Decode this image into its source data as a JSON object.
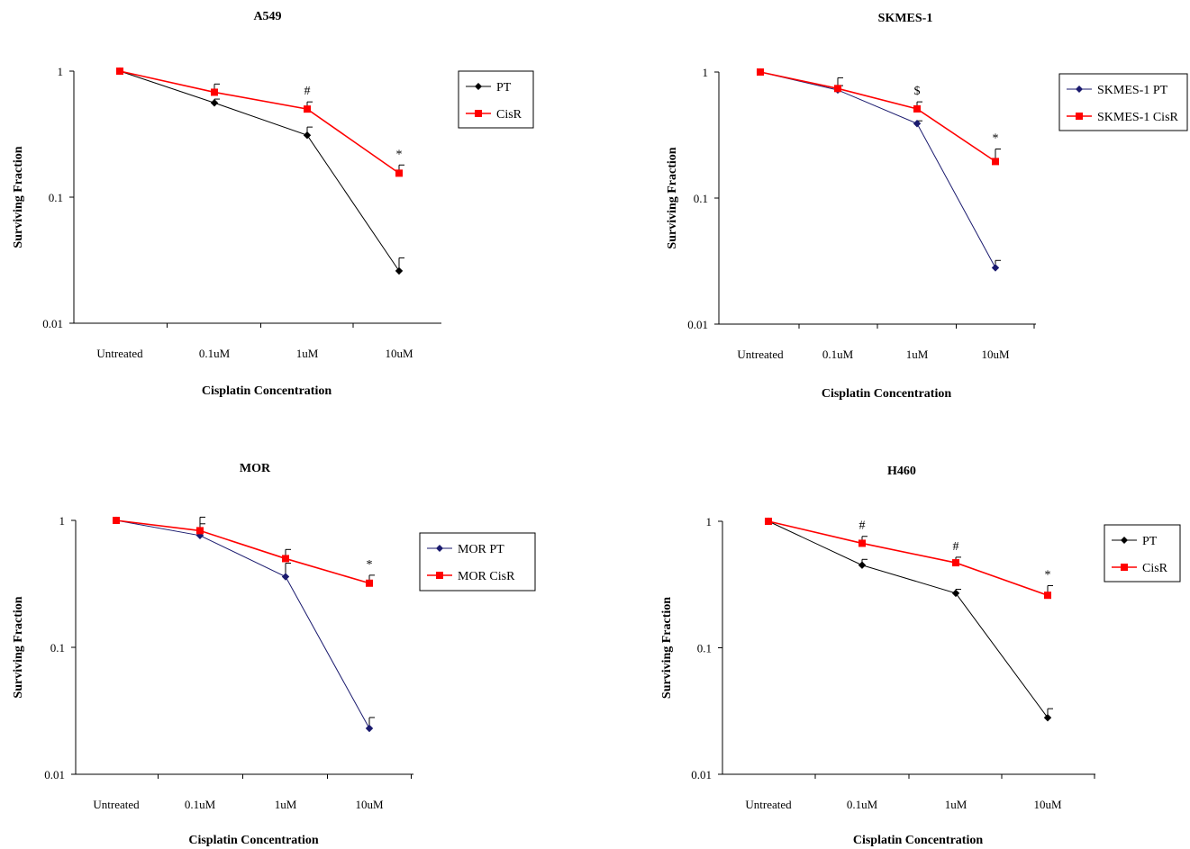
{
  "colors": {
    "pt_black": "#000000",
    "pt_navy": "#1a1a6e",
    "cisr": "#ff0000"
  },
  "chart_data": [
    {
      "type": "line",
      "title": "A549",
      "xlabel": "Cisplatin Concentration",
      "ylabel": "Surviving Fraction",
      "yscale": "log",
      "ylim": [
        0.01,
        1
      ],
      "yticks": [
        "0.01",
        "0.1",
        "1"
      ],
      "categories": [
        "Untreated",
        "0.1uM",
        "1uM",
        "10uM"
      ],
      "legend_position": "top-right",
      "series": [
        {
          "name": "PT",
          "color": "#000000",
          "marker": "diamond",
          "values": [
            1,
            0.56,
            0.31,
            0.026
          ],
          "errors_upper": [
            1,
            0.6,
            0.36,
            0.033
          ]
        },
        {
          "name": "CisR",
          "color": "#ff0000",
          "marker": "square",
          "values": [
            1,
            0.68,
            0.5,
            0.155
          ],
          "errors_upper": [
            1,
            0.79,
            0.57,
            0.18
          ]
        }
      ],
      "annotations": [
        "",
        "",
        "#",
        "*"
      ]
    },
    {
      "type": "line",
      "title": "SKMES-1",
      "xlabel": "Cisplatin Concentration",
      "ylabel": "Surviving Fraction",
      "yscale": "log",
      "ylim": [
        0.01,
        1
      ],
      "yticks": [
        "0.01",
        "0.1",
        "1"
      ],
      "categories": [
        "Untreated",
        "0.1uM",
        "1uM",
        "10uM"
      ],
      "legend_position": "top-right",
      "series": [
        {
          "name": "SKMES-1 PT",
          "color": "#1a1a6e",
          "marker": "diamond",
          "values": [
            1,
            0.72,
            0.39,
            0.028
          ],
          "errors_upper": [
            1,
            0.78,
            0.41,
            0.032
          ]
        },
        {
          "name": "SKMES-1 CisR",
          "color": "#ff0000",
          "marker": "square",
          "values": [
            1,
            0.74,
            0.51,
            0.195
          ],
          "errors_upper": [
            1,
            0.9,
            0.58,
            0.245
          ]
        }
      ],
      "annotations": [
        "",
        "",
        "$",
        "*"
      ]
    },
    {
      "type": "line",
      "title": "MOR",
      "xlabel": "Cisplatin Concentration",
      "ylabel": "Surviving Fraction",
      "yscale": "log",
      "ylim": [
        0.01,
        1
      ],
      "yticks": [
        "0.01",
        "0.1",
        "1"
      ],
      "categories": [
        "Untreated",
        "0.1uM",
        "1uM",
        "10uM"
      ],
      "legend_position": "right",
      "series": [
        {
          "name": "MOR PT",
          "color": "#1a1a6e",
          "marker": "diamond",
          "values": [
            1,
            0.76,
            0.36,
            0.023
          ],
          "errors_upper": [
            1,
            0.94,
            0.46,
            0.028
          ]
        },
        {
          "name": "MOR CisR",
          "color": "#ff0000",
          "marker": "square",
          "values": [
            1,
            0.83,
            0.5,
            0.32
          ],
          "errors_upper": [
            1,
            1.06,
            0.59,
            0.37
          ]
        }
      ],
      "annotations": [
        "",
        "",
        "",
        "*"
      ]
    },
    {
      "type": "line",
      "title": "H460",
      "xlabel": "Cisplatin Concentration",
      "ylabel": "Surviving Fraction",
      "yscale": "log",
      "ylim": [
        0.01,
        1
      ],
      "yticks": [
        "0.01",
        "0.1",
        "1"
      ],
      "categories": [
        "Untreated",
        "0.1uM",
        "1uM",
        "10uM"
      ],
      "legend_position": "top-right",
      "series": [
        {
          "name": "PT",
          "color": "#000000",
          "marker": "diamond",
          "values": [
            1,
            0.45,
            0.27,
            0.028
          ],
          "errors_upper": [
            1,
            0.5,
            0.29,
            0.033
          ]
        },
        {
          "name": "CisR",
          "color": "#ff0000",
          "marker": "square",
          "values": [
            1,
            0.67,
            0.47,
            0.26
          ],
          "errors_upper": [
            1,
            0.76,
            0.52,
            0.31
          ]
        }
      ],
      "annotations": [
        "",
        "#",
        "#",
        "*"
      ]
    }
  ]
}
